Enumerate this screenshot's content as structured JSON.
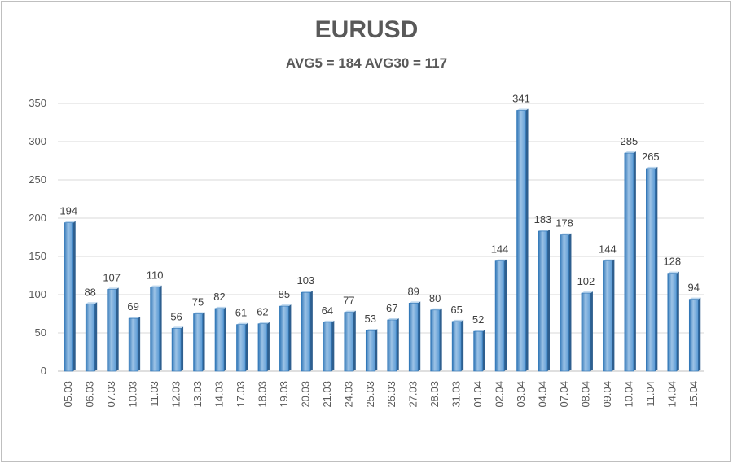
{
  "chart_data": {
    "type": "bar",
    "title": "EURUSD",
    "subtitle": "AVG5 = 184 AVG30 = 117",
    "categories": [
      "05.03",
      "06.03",
      "07.03",
      "10.03",
      "11.03",
      "12.03",
      "13.03",
      "14.03",
      "17.03",
      "18.03",
      "19.03",
      "20.03",
      "21.03",
      "24.03",
      "25.03",
      "26.03",
      "27.03",
      "28.03",
      "31.03",
      "01.04",
      "02.04",
      "03.04",
      "04.04",
      "07.04",
      "08.04",
      "09.04",
      "10.04",
      "11.04",
      "14.04",
      "15.04"
    ],
    "values": [
      194,
      88,
      107,
      69,
      110,
      56,
      75,
      82,
      61,
      62,
      85,
      103,
      64,
      77,
      53,
      67,
      89,
      80,
      65,
      52,
      144,
      341,
      183,
      178,
      102,
      144,
      285,
      265,
      128,
      94
    ],
    "xlabel": "",
    "ylabel": "",
    "ylim": [
      0,
      350
    ],
    "yticks": [
      0,
      50,
      100,
      150,
      200,
      250,
      300,
      350
    ],
    "grid": true,
    "legend": "none",
    "colors": {
      "bar": "#5b9bd5",
      "bar_dark": "#2e75b6",
      "bar_light": "#9dc3e6",
      "grid": "#d9d9d9",
      "text": "#595959"
    }
  }
}
